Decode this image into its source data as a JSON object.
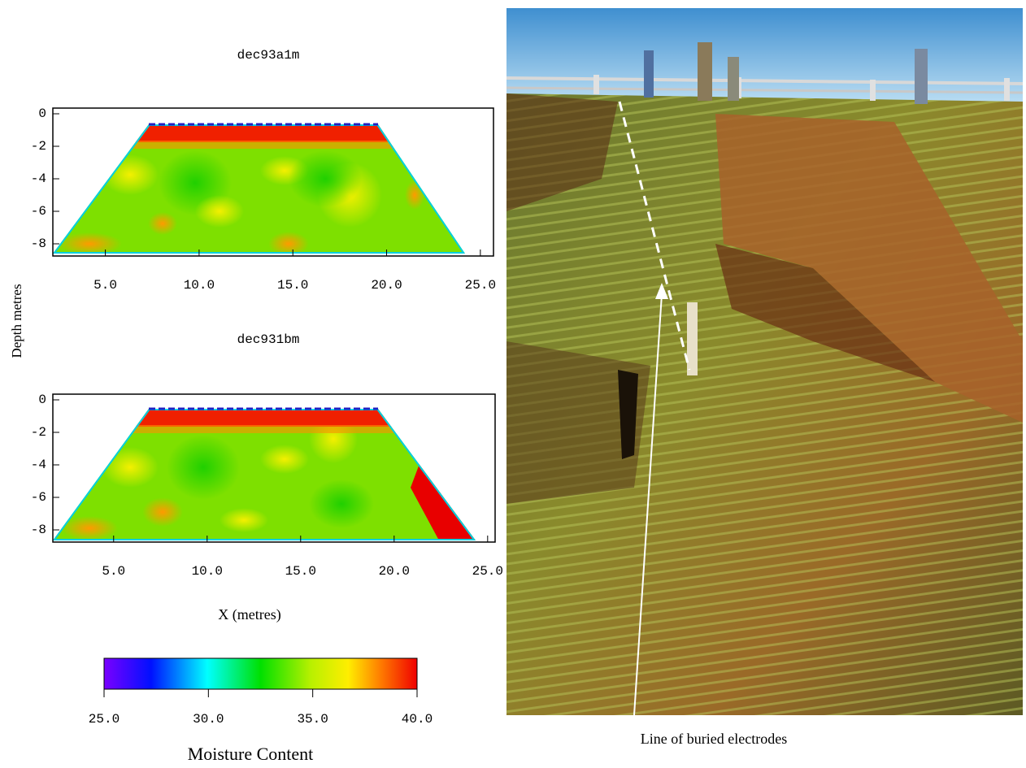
{
  "figure": {
    "ylabel": "Depth metres",
    "xlabel": "X (metres)",
    "panels": [
      {
        "title": "dec93a1m",
        "xlim": [
          2.2,
          25.7
        ],
        "ylim": [
          -8.75,
          0.35
        ],
        "xticks": [
          {
            "value": 5,
            "label": "5.0"
          },
          {
            "value": 10,
            "label": "10.0"
          },
          {
            "value": 15,
            "label": "15.0"
          },
          {
            "value": 20,
            "label": "20.0"
          },
          {
            "value": 25,
            "label": "25.0"
          }
        ],
        "yticks": [
          0,
          -2,
          -4,
          -6,
          -8
        ]
      },
      {
        "title": "dec931bm",
        "xlim": [
          1.75,
          25.4
        ],
        "ylim": [
          -8.75,
          0.35
        ],
        "xticks": [
          {
            "value": 5,
            "label": "5.0"
          },
          {
            "value": 10,
            "label": "10.0"
          },
          {
            "value": 15,
            "label": "15.0"
          },
          {
            "value": 20,
            "label": "20.0"
          },
          {
            "value": 25,
            "label": "25.0"
          }
        ],
        "yticks": [
          0,
          -2,
          -4,
          -6,
          -8
        ]
      }
    ],
    "colorbar": {
      "label": "Moisture Content",
      "lim": [
        25,
        40
      ],
      "ticks": [
        {
          "value": 25,
          "label": "25.0"
        },
        {
          "value": 30,
          "label": "30.0"
        },
        {
          "value": 35,
          "label": "35.0"
        },
        {
          "value": 40,
          "label": "40.0"
        }
      ]
    },
    "photo_caption": "Line of buried electrodes"
  }
}
